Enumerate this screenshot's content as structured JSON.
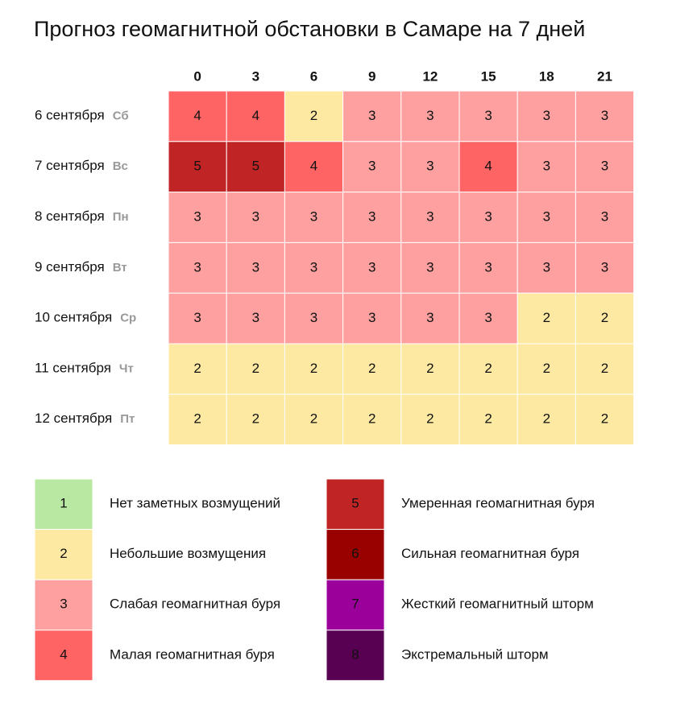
{
  "chart_data": {
    "type": "heatmap",
    "title": "Прогноз геомагнитной обстановки в Самаре на 7 дней",
    "x": [
      0,
      3,
      6,
      9,
      12,
      15,
      18,
      21
    ],
    "days": [
      "6 сентября",
      "7 сентября",
      "8 сентября",
      "9 сентября",
      "10 сентября",
      "11 сентября",
      "12 сентября"
    ],
    "weekdays": [
      "Сб",
      "Вс",
      "Пн",
      "Вт",
      "Ср",
      "Чт",
      "Пт"
    ],
    "values": [
      [
        4,
        4,
        2,
        3,
        3,
        3,
        3,
        3
      ],
      [
        5,
        5,
        4,
        3,
        3,
        4,
        3,
        3
      ],
      [
        3,
        3,
        3,
        3,
        3,
        3,
        3,
        3
      ],
      [
        3,
        3,
        3,
        3,
        3,
        3,
        3,
        3
      ],
      [
        3,
        3,
        3,
        3,
        3,
        3,
        2,
        2
      ],
      [
        2,
        2,
        2,
        2,
        2,
        2,
        2,
        2
      ],
      [
        2,
        2,
        2,
        2,
        2,
        2,
        2,
        2
      ]
    ],
    "scale": [
      {
        "value": 1,
        "label": "Нет заметных возмущений",
        "color": "#b8e8a2"
      },
      {
        "value": 2,
        "label": "Небольшие возмущения",
        "color": "#fde9a1"
      },
      {
        "value": 3,
        "label": "Слабая геомагнитная буря",
        "color": "#fea0a0"
      },
      {
        "value": 4,
        "label": "Малая геомагнитная буря",
        "color": "#fe6464"
      },
      {
        "value": 5,
        "label": "Умеренная геомагнитная буря",
        "color": "#c02424"
      },
      {
        "value": 6,
        "label": "Сильная геомагнитная буря",
        "color": "#990000"
      },
      {
        "value": 7,
        "label": "Жесткий геомагнитный шторм",
        "color": "#9b009b"
      },
      {
        "value": 8,
        "label": "Экстремальный шторм",
        "color": "#580052"
      }
    ]
  }
}
